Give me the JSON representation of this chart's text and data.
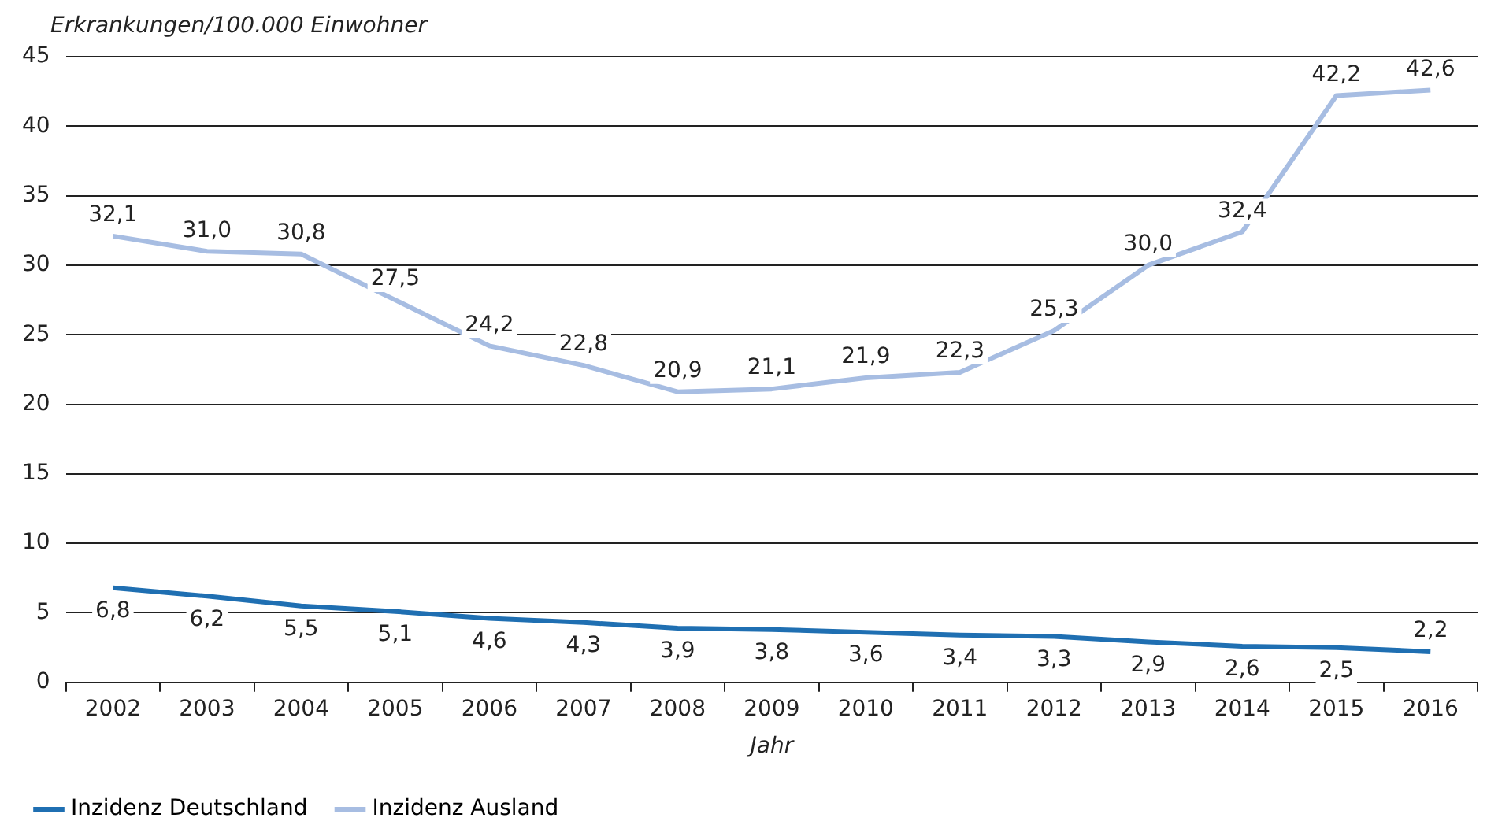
{
  "chart_data": {
    "type": "line",
    "ylabel": "Erkrankungen/100.000 Einwohner",
    "xlabel": "Jahr",
    "categories": [
      "2002",
      "2003",
      "2004",
      "2005",
      "2006",
      "2007",
      "2008",
      "2009",
      "2010",
      "2011",
      "2012",
      "2013",
      "2014",
      "2015",
      "2016"
    ],
    "series": [
      {
        "name": "Inzidenz Deutschland",
        "color": "#1f6fb2",
        "values": [
          6.8,
          6.2,
          5.5,
          5.1,
          4.6,
          4.3,
          3.9,
          3.8,
          3.6,
          3.4,
          3.3,
          2.9,
          2.6,
          2.5,
          2.2
        ],
        "value_labels": [
          "6,8",
          "6,2",
          "5,5",
          "5,1",
          "4,6",
          "4,3",
          "3,9",
          "3,8",
          "3,6",
          "3,4",
          "3,3",
          "2,9",
          "2,6",
          "2,5",
          "2,2"
        ]
      },
      {
        "name": "Inzidenz Ausland",
        "color": "#a7bde2",
        "values": [
          32.1,
          31.0,
          30.8,
          27.5,
          24.2,
          22.8,
          20.9,
          21.1,
          21.9,
          22.3,
          25.3,
          30.0,
          32.4,
          42.2,
          42.6
        ],
        "value_labels": [
          "32,1",
          "31,0",
          "30,8",
          "27,5",
          "24,2",
          "22,8",
          "20,9",
          "21,1",
          "21,9",
          "22,3",
          "25,3",
          "30,0",
          "32,4",
          "42,2",
          "42,6"
        ]
      }
    ],
    "ylim": [
      0,
      45
    ],
    "yticks": [
      0,
      5,
      10,
      15,
      20,
      25,
      30,
      35,
      40,
      45
    ],
    "grid": "y",
    "legend": "bottom left",
    "marker": "none",
    "line_style": "solid"
  }
}
